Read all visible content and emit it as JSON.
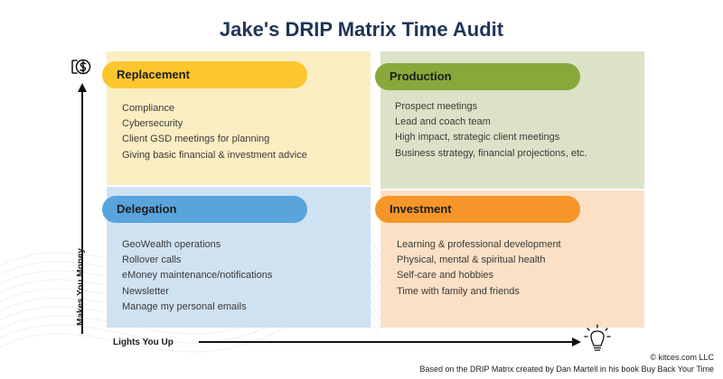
{
  "title": "Jake's DRIP Matrix Time Audit",
  "axes": {
    "y_label": "Makes You Money",
    "x_label": "Lights You Up",
    "y_icon": "money-icon",
    "x_icon": "lightbulb-icon"
  },
  "quadrants": {
    "replacement": {
      "label": "Replacement",
      "color": "#fcc62f",
      "background": "#fbeec3",
      "items": [
        "Compliance",
        "Cybersecurity",
        "Client GSD meetings for planning",
        "Giving basic financial & investment advice"
      ]
    },
    "production": {
      "label": "Production",
      "color": "#88a83b",
      "background": "#dbe2c7",
      "items": [
        "Prospect meetings",
        "Lead and coach team",
        "High impact, strategic client meetings",
        "Business strategy, financial projections, etc."
      ]
    },
    "delegation": {
      "label": "Delegation",
      "color": "#58a4dd",
      "background": "#cfe2f2",
      "items": [
        "GeoWealth operations",
        "Rollover calls",
        "eMoney maintenance/notifications",
        "Newsletter",
        "Manage my personal emails"
      ]
    },
    "investment": {
      "label": "Investment",
      "color": "#f6962a",
      "background": "#fbe0c5",
      "items": [
        "Learning & professional development",
        "Physical, mental & spiritual health",
        "Self-care and hobbies",
        "Time with family and friends"
      ]
    }
  },
  "footer": {
    "copyright": "© kitces.com LLC",
    "credit": "Based on the DRIP Matrix created by Dan Martell in his book Buy Back Your Time"
  }
}
